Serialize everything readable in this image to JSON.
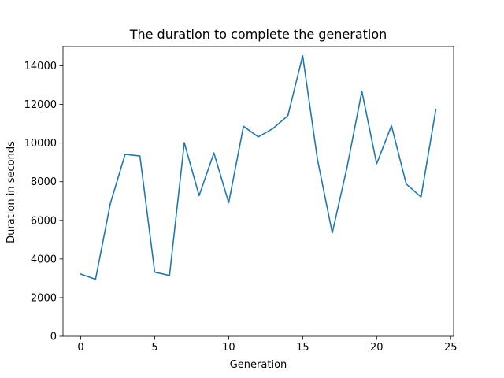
{
  "chart_data": {
    "type": "line",
    "title": "The duration to complete the generation",
    "xlabel": "Generation",
    "ylabel": "Duration in seconds",
    "xlim": [
      -1.2,
      25.2
    ],
    "ylim": [
      0,
      15000
    ],
    "x_ticks": [
      0,
      5,
      10,
      15,
      20,
      25
    ],
    "y_ticks": [
      0,
      2000,
      4000,
      6000,
      8000,
      10000,
      12000,
      14000
    ],
    "x_tick_labels": [
      "0",
      "5",
      "10",
      "15",
      "20",
      "25"
    ],
    "y_tick_labels": [
      "0",
      "2000",
      "4000",
      "6000",
      "8000",
      "10000",
      "12000",
      "14000"
    ],
    "grid": false,
    "legend": "none",
    "series": [
      {
        "color": "#1f77b4",
        "x": [
          0,
          1,
          2,
          3,
          4,
          5,
          6,
          7,
          8,
          9,
          10,
          11,
          12,
          13,
          14,
          15,
          16,
          17,
          18,
          19,
          20,
          21,
          22,
          23,
          24
        ],
        "values": [
          3220,
          2950,
          6870,
          9420,
          9330,
          3320,
          3150,
          10020,
          7280,
          9490,
          6910,
          10870,
          10320,
          10760,
          11420,
          14520,
          9150,
          5350,
          8750,
          12680,
          8930,
          10900,
          7880,
          7210,
          11740
        ]
      }
    ]
  }
}
